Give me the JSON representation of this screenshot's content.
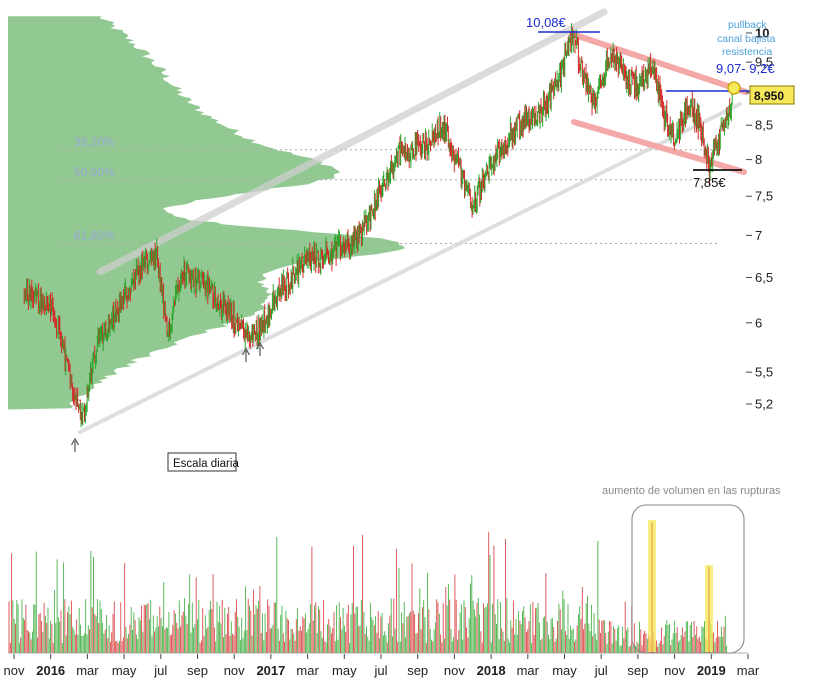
{
  "chart_data": {
    "type": "candlestick",
    "scale": "log",
    "ylim": [
      4.9,
      10.3
    ],
    "y_ticks": [
      "10",
      "9,5",
      "9",
      "8,5",
      "8",
      "7,5",
      "7",
      "6,5",
      "6",
      "5,5",
      "5,2"
    ],
    "x_ticks": [
      {
        "label": "nov",
        "year": false
      },
      {
        "label": "2016",
        "year": true
      },
      {
        "label": "mar",
        "year": false
      },
      {
        "label": "may",
        "year": false
      },
      {
        "label": "jul",
        "year": false
      },
      {
        "label": "sep",
        "year": false
      },
      {
        "label": "nov",
        "year": false
      },
      {
        "label": "2017",
        "year": true
      },
      {
        "label": "mar",
        "year": false
      },
      {
        "label": "may",
        "year": false
      },
      {
        "label": "jul",
        "year": false
      },
      {
        "label": "sep",
        "year": false
      },
      {
        "label": "nov",
        "year": false
      },
      {
        "label": "2018",
        "year": true
      },
      {
        "label": "mar",
        "year": false
      },
      {
        "label": "may",
        "year": false
      },
      {
        "label": "jul",
        "year": false
      },
      {
        "label": "sep",
        "year": false
      },
      {
        "label": "nov",
        "year": false
      },
      {
        "label": "2019",
        "year": true
      },
      {
        "label": "mar",
        "year": false
      }
    ],
    "price_path": [
      [
        "2015-11-01",
        6.3
      ],
      [
        "2015-12-15",
        6.2
      ],
      [
        "2016-01-10",
        5.6
      ],
      [
        "2016-02-08",
        5.05
      ],
      [
        "2016-03-01",
        5.8
      ],
      [
        "2016-04-01",
        6.1
      ],
      [
        "2016-05-15",
        6.6
      ],
      [
        "2016-06-10",
        6.75
      ],
      [
        "2016-06-27",
        5.85
      ],
      [
        "2016-07-20",
        6.6
      ],
      [
        "2016-09-01",
        6.4
      ],
      [
        "2016-10-15",
        6.05
      ],
      [
        "2016-11-10",
        5.85
      ],
      [
        "2016-11-25",
        5.9
      ],
      [
        "2017-01-01",
        6.35
      ],
      [
        "2017-02-15",
        6.7
      ],
      [
        "2017-04-01",
        6.8
      ],
      [
        "2017-05-15",
        7.0
      ],
      [
        "2017-06-15",
        7.5
      ],
      [
        "2017-07-20",
        8.1
      ],
      [
        "2017-09-01",
        8.2
      ],
      [
        "2017-10-01",
        8.5
      ],
      [
        "2017-11-01",
        7.8
      ],
      [
        "2017-11-20",
        7.4
      ],
      [
        "2017-12-20",
        7.9
      ],
      [
        "2018-02-01",
        8.5
      ],
      [
        "2018-03-15",
        8.7
      ],
      [
        "2018-04-15",
        9.3
      ],
      [
        "2018-05-07",
        10.0
      ],
      [
        "2018-05-25",
        9.2
      ],
      [
        "2018-06-10",
        8.8
      ],
      [
        "2018-07-05",
        9.6
      ],
      [
        "2018-08-01",
        9.3
      ],
      [
        "2018-08-25",
        9.1
      ],
      [
        "2018-09-15",
        9.4
      ],
      [
        "2018-10-05",
        8.7
      ],
      [
        "2018-10-25",
        8.3
      ],
      [
        "2018-11-15",
        8.85
      ],
      [
        "2018-12-05",
        8.5
      ],
      [
        "2018-12-20",
        7.9
      ],
      [
        "2019-01-10",
        8.4
      ],
      [
        "2019-01-28",
        8.95
      ]
    ],
    "last_price": "8,950",
    "fibonacci": [
      {
        "label": "38,20%",
        "value": 8.14
      },
      {
        "label": "50,00%",
        "value": 7.72
      },
      {
        "label": "61,80%",
        "value": 6.9
      }
    ],
    "annotations": {
      "high": "10,08€",
      "low": "7,85€",
      "target": "9,07- 9,2€",
      "pullback": [
        "pullback",
        "canal bajista",
        "resistencia"
      ],
      "volume_note": "aumento de volumen en las rupturas",
      "scale_note": "Escala diaria"
    }
  },
  "colors": {
    "up": "#2aa52a",
    "down": "#d42a2a",
    "profile": "#7fbf7f",
    "channel_up": "#cfcfcf",
    "channel_down": "#f4a8a8",
    "resistance": "#1a2bd0",
    "highlight": "#f5e85a"
  }
}
